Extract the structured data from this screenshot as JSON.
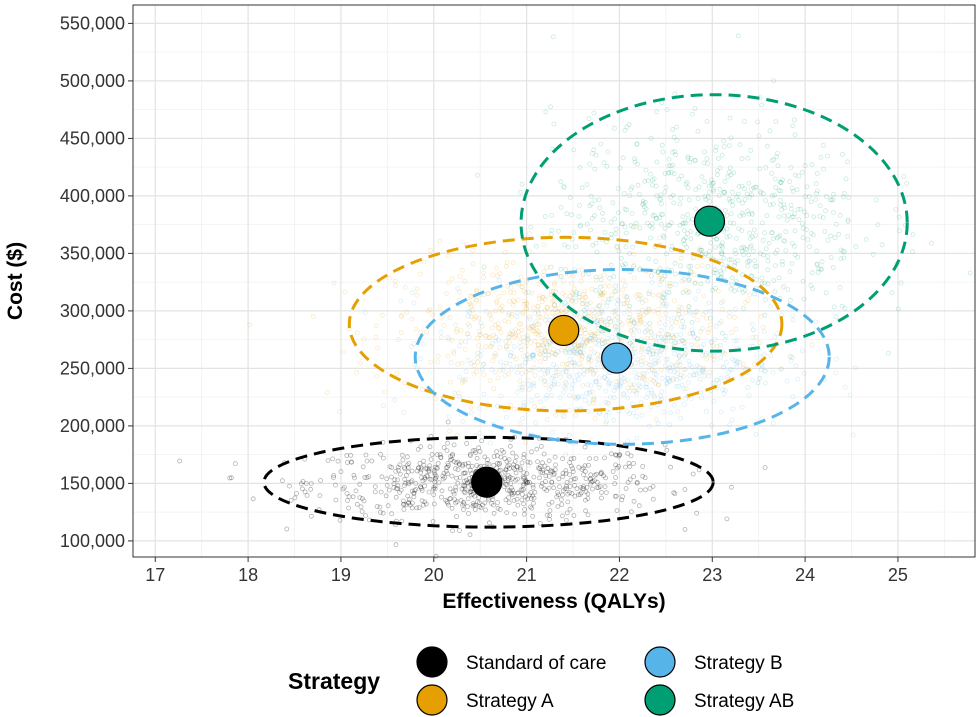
{
  "chart_data": {
    "type": "scatter",
    "title": "",
    "xlabel": "Effectiveness (QALYs)",
    "ylabel": "Cost ($)",
    "xlim": [
      16.76,
      25.83
    ],
    "ylim": [
      86000,
      566000
    ],
    "xticks": [
      17,
      18,
      19,
      20,
      21,
      22,
      23,
      24,
      25
    ],
    "xtick_labels": [
      "17",
      "18",
      "19",
      "20",
      "21",
      "22",
      "23",
      "24",
      "25"
    ],
    "yticks": [
      100000,
      150000,
      200000,
      250000,
      300000,
      350000,
      400000,
      450000,
      500000,
      550000
    ],
    "ytick_labels": [
      "100,000",
      "150,000",
      "200,000",
      "250,000",
      "300,000",
      "350,000",
      "400,000",
      "450,000",
      "500,000",
      "550,000"
    ],
    "grid": true,
    "legend": {
      "title": "Strategy",
      "placement": "bottom"
    },
    "series": [
      {
        "name": "Standard of care",
        "color": "#000000",
        "mean": {
          "x": 20.57,
          "y": 151000
        },
        "ellipse": {
          "cx": 20.59,
          "cy": 151000,
          "rx": 2.42,
          "ry": 39000
        },
        "cloud_sd": {
          "x": 0.95,
          "y": 16000
        }
      },
      {
        "name": "Strategy A",
        "color": "#E69F00",
        "mean": {
          "x": 21.4,
          "y": 283000
        },
        "ellipse": {
          "cx": 21.42,
          "cy": 288500,
          "rx": 2.33,
          "ry": 75500
        },
        "cloud_sd": {
          "x": 0.9,
          "y": 31000
        }
      },
      {
        "name": "Strategy B",
        "color": "#56B4E9",
        "mean": {
          "x": 21.97,
          "y": 259000
        },
        "ellipse": {
          "cx": 22.03,
          "cy": 260000,
          "rx": 2.23,
          "ry": 76000
        },
        "cloud_sd": {
          "x": 0.9,
          "y": 31000
        }
      },
      {
        "name": "Strategy AB",
        "color": "#009E73",
        "mean": {
          "x": 22.97,
          "y": 378000
        },
        "ellipse": {
          "cx": 23.02,
          "cy": 376500,
          "rx": 2.08,
          "ry": 111500
        },
        "cloud_sd": {
          "x": 0.85,
          "y": 45000
        }
      }
    ]
  }
}
